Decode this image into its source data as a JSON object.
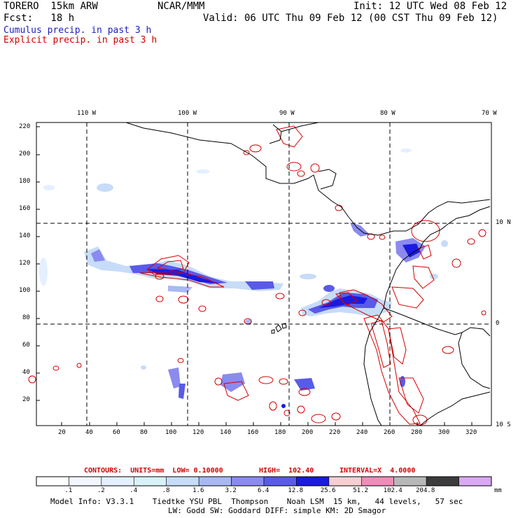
{
  "header": {
    "model": "TORERO  15km ARW",
    "org": "NCAR/MMM",
    "init": "Init: 12 UTC Wed 08 Feb 12",
    "fcst": "Fcst:   18 h",
    "valid": "Valid: 06 UTC Thu 09 Feb 12 (00 CST Thu 09 Feb 12)",
    "cumulus": "Cumulus precip. in past 3 h",
    "explicit": "Explicit precip. in past 3 h"
  },
  "colors": {
    "cumulus": "#1d1dbf",
    "explicit": "#d40000",
    "coast": "#000000"
  },
  "map": {
    "lon_labels": [
      "110 W",
      "100 W",
      "90 W",
      "80 W",
      "70 W"
    ],
    "lat_labels": [
      "10 N",
      "0",
      "10 S"
    ],
    "y_ticks": [
      "220",
      "200",
      "180",
      "160",
      "140",
      "120",
      "100",
      "80",
      "60",
      "40",
      "20"
    ],
    "x_ticks": [
      "20",
      "40",
      "60",
      "80",
      "100",
      "120",
      "140",
      "160",
      "180",
      "200",
      "220",
      "240",
      "260",
      "280",
      "300",
      "320"
    ]
  },
  "contour_info": {
    "contours": "CONTOURS:  UNITS=mm  LOW= 0.10000",
    "high": "HIGH=  102.40",
    "interval": "INTERVAL=X  4.0000"
  },
  "colorbar": {
    "colors": [
      "#ffffff",
      "#f2f7ff",
      "#e4f0ff",
      "#d8f2fa",
      "#c6dcf8",
      "#a9b8f3",
      "#8a8af0",
      "#5a5ae8",
      "#1a1ae0",
      "#f7cfd3",
      "#f08cb8",
      "#b8b8b8",
      "#3c3c3c",
      "#dba8f5"
    ],
    "labels": [
      ".1",
      ".2",
      ".4",
      ".8",
      "1.6",
      "3.2",
      "6.4",
      "12.8",
      "25.6",
      "51.2",
      "102.4",
      "204.8"
    ],
    "units": "mm"
  },
  "footer": {
    "line1": "Model Info: V3.3.1    Tiedtke YSU PBL  Thompson    Noah LSM  15 km,   44 levels,   57 sec",
    "line2": "LW: Godd SW: Goddard DIFF: simple KM: 2D Smagor"
  }
}
